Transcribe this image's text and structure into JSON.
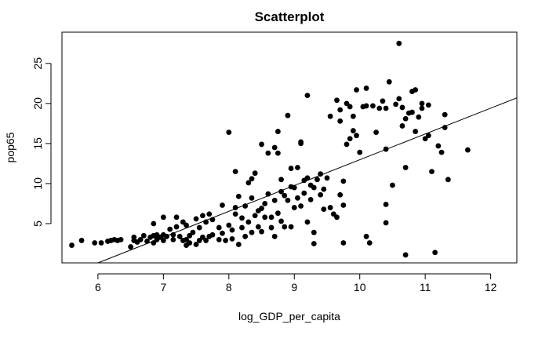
{
  "chart_data": {
    "type": "scatter",
    "title": "Scatterplot",
    "xlabel": "log_GDP_per_capita",
    "ylabel": "pop65",
    "xlim": [
      5.45,
      12.4
    ],
    "ylim": [
      0.1,
      28.9
    ],
    "xticks": [
      6,
      7,
      8,
      9,
      10,
      11,
      12
    ],
    "yticks": [
      5,
      10,
      15,
      20,
      25
    ],
    "grid": false,
    "legend": "none",
    "point_color": "#000000",
    "line_color": "#000000",
    "trend_line": {
      "x": [
        6.0,
        12.4
      ],
      "y": [
        0.1,
        20.7
      ]
    },
    "series": [
      {
        "points": [
          [
            5.6,
            2.3
          ],
          [
            5.75,
            2.9
          ],
          [
            5.95,
            2.6
          ],
          [
            6.05,
            2.6
          ],
          [
            6.15,
            2.8
          ],
          [
            6.2,
            2.9
          ],
          [
            6.25,
            3.0
          ],
          [
            6.3,
            2.9
          ],
          [
            6.35,
            3.0
          ],
          [
            6.5,
            2.1
          ],
          [
            6.55,
            2.9
          ],
          [
            6.55,
            3.3
          ],
          [
            6.6,
            2.7
          ],
          [
            6.65,
            3.0
          ],
          [
            6.7,
            3.5
          ],
          [
            6.75,
            2.8
          ],
          [
            6.8,
            3.3
          ],
          [
            6.85,
            2.6
          ],
          [
            6.85,
            3.5
          ],
          [
            6.85,
            5.0
          ],
          [
            6.9,
            3.0
          ],
          [
            6.9,
            3.6
          ],
          [
            6.95,
            3.3
          ],
          [
            7.0,
            2.9
          ],
          [
            7.0,
            3.6
          ],
          [
            7.0,
            5.8
          ],
          [
            7.05,
            3.4
          ],
          [
            7.1,
            4.3
          ],
          [
            7.15,
            3.0
          ],
          [
            7.15,
            3.6
          ],
          [
            7.2,
            4.6
          ],
          [
            7.2,
            5.8
          ],
          [
            7.25,
            3.4
          ],
          [
            7.3,
            2.9
          ],
          [
            7.3,
            5.2
          ],
          [
            7.35,
            2.3
          ],
          [
            7.35,
            3.0
          ],
          [
            7.35,
            4.8
          ],
          [
            7.4,
            3.5
          ],
          [
            7.4,
            2.6
          ],
          [
            7.45,
            3.9
          ],
          [
            7.5,
            2.4
          ],
          [
            7.5,
            5.6
          ],
          [
            7.55,
            4.5
          ],
          [
            7.55,
            2.9
          ],
          [
            7.6,
            6.0
          ],
          [
            7.6,
            3.3
          ],
          [
            7.65,
            2.9
          ],
          [
            7.65,
            5.2
          ],
          [
            7.7,
            3.4
          ],
          [
            7.7,
            6.2
          ],
          [
            7.75,
            3.6
          ],
          [
            7.75,
            5.5
          ],
          [
            7.85,
            3.0
          ],
          [
            7.85,
            4.5
          ],
          [
            7.9,
            7.3
          ],
          [
            7.9,
            3.8
          ],
          [
            7.95,
            2.9
          ],
          [
            8.0,
            16.4
          ],
          [
            8.0,
            4.8
          ],
          [
            8.05,
            4.2
          ],
          [
            8.05,
            3.1
          ],
          [
            8.1,
            6.2
          ],
          [
            8.1,
            7.0
          ],
          [
            8.1,
            11.5
          ],
          [
            8.15,
            2.4
          ],
          [
            8.15,
            8.4
          ],
          [
            8.2,
            5.7
          ],
          [
            8.2,
            4.5
          ],
          [
            8.25,
            7.2
          ],
          [
            8.25,
            3.4
          ],
          [
            8.3,
            5.2
          ],
          [
            8.3,
            10.1
          ],
          [
            8.35,
            10.6
          ],
          [
            8.35,
            8.2
          ],
          [
            8.35,
            3.9
          ],
          [
            8.4,
            6.0
          ],
          [
            8.4,
            11.3
          ],
          [
            8.45,
            4.6
          ],
          [
            8.45,
            6.6
          ],
          [
            8.5,
            6.9
          ],
          [
            8.5,
            14.9
          ],
          [
            8.5,
            4.0
          ],
          [
            8.55,
            5.8
          ],
          [
            8.55,
            7.5
          ],
          [
            8.6,
            8.7
          ],
          [
            8.6,
            13.8
          ],
          [
            8.65,
            4.5
          ],
          [
            8.65,
            5.8
          ],
          [
            8.7,
            3.4
          ],
          [
            8.7,
            7.9
          ],
          [
            8.7,
            14.5
          ],
          [
            8.75,
            16.5
          ],
          [
            8.75,
            13.8
          ],
          [
            8.75,
            6.3
          ],
          [
            8.8,
            9.0
          ],
          [
            8.8,
            10.5
          ],
          [
            8.8,
            5.3
          ],
          [
            8.85,
            4.6
          ],
          [
            8.85,
            8.5
          ],
          [
            8.9,
            7.9
          ],
          [
            8.9,
            18.5
          ],
          [
            8.95,
            9.6
          ],
          [
            8.95,
            4.6
          ],
          [
            8.95,
            11.9
          ],
          [
            9.0,
            7.0
          ],
          [
            9.0,
            9.5
          ],
          [
            9.05,
            8.2
          ],
          [
            9.05,
            12.0
          ],
          [
            9.1,
            15.2
          ],
          [
            9.1,
            15.0
          ],
          [
            9.1,
            7.2
          ],
          [
            9.15,
            10.4
          ],
          [
            9.15,
            8.8
          ],
          [
            9.2,
            21.0
          ],
          [
            9.2,
            10.7
          ],
          [
            9.2,
            5.2
          ],
          [
            9.25,
            9.8
          ],
          [
            9.25,
            8.0
          ],
          [
            9.3,
            3.9
          ],
          [
            9.3,
            9.5
          ],
          [
            9.3,
            2.5
          ],
          [
            9.35,
            10.5
          ],
          [
            9.4,
            8.6
          ],
          [
            9.4,
            11.2
          ],
          [
            9.45,
            9.3
          ],
          [
            9.45,
            6.8
          ],
          [
            9.5,
            10.7
          ],
          [
            9.55,
            18.4
          ],
          [
            9.55,
            7.0
          ],
          [
            9.6,
            6.2
          ],
          [
            9.65,
            5.8
          ],
          [
            9.65,
            20.4
          ],
          [
            9.7,
            17.8
          ],
          [
            9.7,
            19.2
          ],
          [
            9.7,
            8.6
          ],
          [
            9.75,
            2.6
          ],
          [
            9.75,
            7.3
          ],
          [
            9.75,
            10.3
          ],
          [
            9.8,
            20.0
          ],
          [
            9.8,
            14.9
          ],
          [
            9.85,
            15.6
          ],
          [
            9.85,
            19.6
          ],
          [
            9.9,
            16.6
          ],
          [
            9.9,
            18.4
          ],
          [
            9.95,
            21.7
          ],
          [
            9.95,
            16.0
          ],
          [
            10.0,
            13.9
          ],
          [
            10.05,
            19.6
          ],
          [
            10.1,
            21.9
          ],
          [
            10.1,
            19.7
          ],
          [
            10.1,
            3.4
          ],
          [
            10.15,
            2.6
          ],
          [
            10.2,
            19.7
          ],
          [
            10.25,
            16.4
          ],
          [
            10.3,
            19.4
          ],
          [
            10.35,
            20.3
          ],
          [
            10.4,
            19.4
          ],
          [
            10.4,
            14.3
          ],
          [
            10.4,
            7.4
          ],
          [
            10.4,
            5.1
          ],
          [
            10.45,
            22.7
          ],
          [
            10.5,
            9.8
          ],
          [
            10.55,
            19.9
          ],
          [
            10.6,
            27.5
          ],
          [
            10.6,
            20.6
          ],
          [
            10.65,
            17.2
          ],
          [
            10.65,
            19.5
          ],
          [
            10.7,
            18.1
          ],
          [
            10.7,
            12.0
          ],
          [
            10.7,
            1.1
          ],
          [
            10.75,
            18.8
          ],
          [
            10.8,
            18.9
          ],
          [
            10.8,
            21.5
          ],
          [
            10.85,
            16.5
          ],
          [
            10.85,
            21.7
          ],
          [
            10.9,
            18.3
          ],
          [
            10.95,
            20.0
          ],
          [
            10.95,
            19.4
          ],
          [
            11.0,
            15.6
          ],
          [
            11.05,
            16.0
          ],
          [
            11.05,
            19.8
          ],
          [
            11.1,
            11.5
          ],
          [
            11.15,
            1.4
          ],
          [
            11.2,
            14.7
          ],
          [
            11.25,
            13.9
          ],
          [
            11.3,
            17.0
          ],
          [
            11.3,
            18.6
          ],
          [
            11.35,
            10.5
          ],
          [
            11.65,
            14.2
          ]
        ]
      }
    ]
  }
}
